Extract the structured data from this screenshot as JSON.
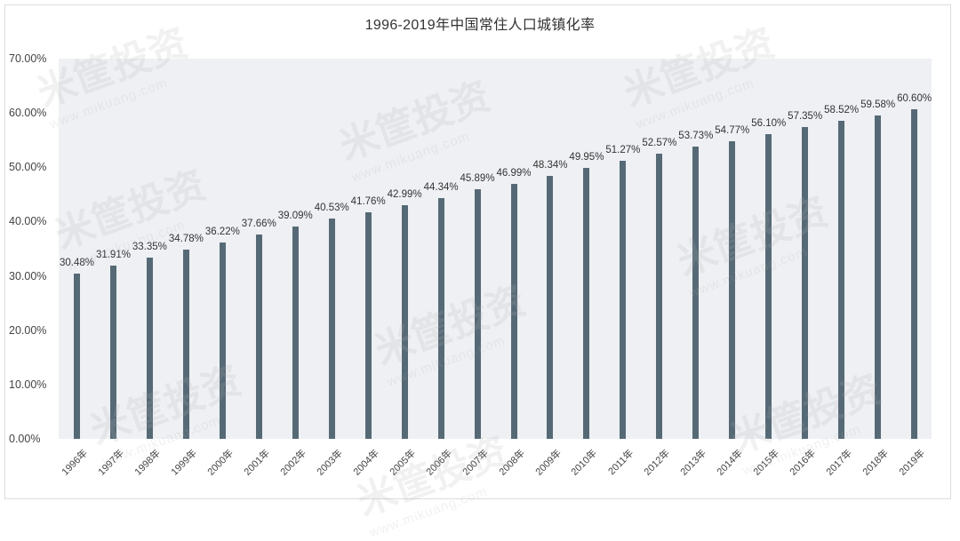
{
  "title": "1996-2019年中国常住人口城镇化率",
  "watermark": {
    "text": "米筐投资",
    "url_text": "www.mikuang.com"
  },
  "colors": {
    "bar": "#566a76",
    "plot_bg": "#eef0f4",
    "text": "#333333"
  },
  "y_ticks": [
    "0.00%",
    "10.00%",
    "20.00%",
    "30.00%",
    "40.00%",
    "50.00%",
    "60.00%",
    "70.00%"
  ],
  "chart_data": {
    "type": "bar",
    "title": "1996-2019年中国常住人口城镇化率",
    "xlabel": "",
    "ylabel": "",
    "ylim": [
      0,
      70
    ],
    "y_tick_step": 10,
    "grid": false,
    "legend": null,
    "categories": [
      "1996年",
      "1997年",
      "1998年",
      "1999年",
      "2000年",
      "2001年",
      "2002年",
      "2003年",
      "2004年",
      "2005年",
      "2006年",
      "2007年",
      "2008年",
      "2009年",
      "2010年",
      "2011年",
      "2012年",
      "2013年",
      "2014年",
      "2015年",
      "2016年",
      "2017年",
      "2018年",
      "2019年"
    ],
    "values": [
      30.48,
      31.91,
      33.35,
      34.78,
      36.22,
      37.66,
      39.09,
      40.53,
      41.76,
      42.99,
      44.34,
      45.89,
      46.99,
      48.34,
      49.95,
      51.27,
      52.57,
      53.73,
      54.77,
      56.1,
      57.35,
      58.52,
      59.58,
      60.6
    ],
    "labels": [
      "30.48%",
      "31.91%",
      "33.35%",
      "34.78%",
      "36.22%",
      "37.66%",
      "39.09%",
      "40.53%",
      "41.76%",
      "42.99%",
      "44.34%",
      "45.89%",
      "46.99%",
      "48.34%",
      "49.95%",
      "51.27%",
      "52.57%",
      "53.73%",
      "54.77%",
      "56.10%",
      "57.35%",
      "58.52%",
      "59.58%",
      "60.60%"
    ]
  }
}
